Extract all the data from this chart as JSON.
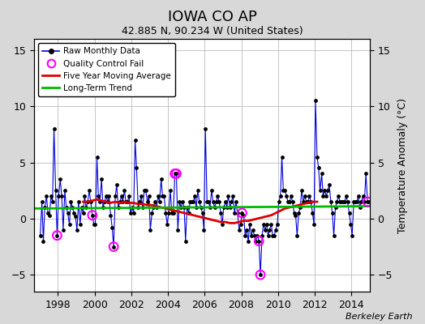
{
  "title": "IOWA CO AP",
  "subtitle": "42.885 N, 90.234 W (United States)",
  "ylabel": "Temperature Anomaly (°C)",
  "xlim": [
    1996.7,
    2015.0
  ],
  "ylim": [
    -6.5,
    16
  ],
  "yticks": [
    -5,
    0,
    5,
    10,
    15
  ],
  "xticks": [
    1998,
    2000,
    2002,
    2004,
    2006,
    2008,
    2010,
    2012,
    2014
  ],
  "bg_color": "#d8d8d8",
  "plot_bg_color": "#ffffff",
  "watermark": "Berkeley Earth",
  "line_color": "#0000dd",
  "ma_color": "#dd0000",
  "trend_color": "#00bb00",
  "qc_color": "#ff00ff",
  "times": [
    1997.04,
    1997.13,
    1997.21,
    1997.29,
    1997.38,
    1997.46,
    1997.54,
    1997.63,
    1997.71,
    1997.79,
    1997.88,
    1997.96,
    1998.04,
    1998.13,
    1998.21,
    1998.29,
    1998.38,
    1998.46,
    1998.54,
    1998.63,
    1998.71,
    1998.79,
    1998.88,
    1998.96,
    1999.04,
    1999.13,
    1999.21,
    1999.29,
    1999.38,
    1999.46,
    1999.54,
    1999.63,
    1999.71,
    1999.79,
    1999.88,
    1999.96,
    2000.04,
    2000.13,
    2000.21,
    2000.29,
    2000.38,
    2000.46,
    2000.54,
    2000.63,
    2000.71,
    2000.79,
    2000.88,
    2000.96,
    2001.04,
    2001.13,
    2001.21,
    2001.29,
    2001.38,
    2001.46,
    2001.54,
    2001.63,
    2001.71,
    2001.79,
    2001.88,
    2001.96,
    2002.04,
    2002.13,
    2002.21,
    2002.29,
    2002.38,
    2002.46,
    2002.54,
    2002.63,
    2002.71,
    2002.79,
    2002.88,
    2002.96,
    2003.04,
    2003.13,
    2003.21,
    2003.29,
    2003.38,
    2003.46,
    2003.54,
    2003.63,
    2003.71,
    2003.79,
    2003.88,
    2003.96,
    2004.04,
    2004.13,
    2004.21,
    2004.29,
    2004.38,
    2004.46,
    2004.54,
    2004.63,
    2004.71,
    2004.79,
    2004.88,
    2004.96,
    2005.04,
    2005.13,
    2005.21,
    2005.29,
    2005.38,
    2005.46,
    2005.54,
    2005.63,
    2005.71,
    2005.79,
    2005.88,
    2005.96,
    2006.04,
    2006.13,
    2006.21,
    2006.29,
    2006.38,
    2006.46,
    2006.54,
    2006.63,
    2006.71,
    2006.79,
    2006.88,
    2006.96,
    2007.04,
    2007.13,
    2007.21,
    2007.29,
    2007.38,
    2007.46,
    2007.54,
    2007.63,
    2007.71,
    2007.79,
    2007.88,
    2007.96,
    2008.04,
    2008.13,
    2008.21,
    2008.29,
    2008.38,
    2008.46,
    2008.54,
    2008.63,
    2008.71,
    2008.79,
    2008.88,
    2008.96,
    2009.04,
    2009.13,
    2009.21,
    2009.29,
    2009.38,
    2009.46,
    2009.54,
    2009.63,
    2009.71,
    2009.79,
    2009.88,
    2009.96,
    2010.04,
    2010.13,
    2010.21,
    2010.29,
    2010.38,
    2010.46,
    2010.54,
    2010.63,
    2010.71,
    2010.79,
    2010.88,
    2010.96,
    2011.04,
    2011.13,
    2011.21,
    2011.29,
    2011.38,
    2011.46,
    2011.54,
    2011.63,
    2011.71,
    2011.79,
    2011.88,
    2011.96,
    2012.04,
    2012.13,
    2012.21,
    2012.29,
    2012.38,
    2012.46,
    2012.54,
    2012.63,
    2012.71,
    2012.79,
    2012.88,
    2012.96,
    2013.04,
    2013.13,
    2013.21,
    2013.29,
    2013.38,
    2013.46,
    2013.54,
    2013.63,
    2013.71,
    2013.79,
    2013.88,
    2013.96,
    2014.04,
    2014.13,
    2014.21,
    2014.29,
    2014.38,
    2014.46,
    2014.54,
    2014.63,
    2014.71,
    2014.79,
    2014.88,
    2014.96
  ],
  "values": [
    -1.5,
    1.5,
    -2.0,
    1.0,
    2.0,
    0.5,
    0.3,
    2.0,
    1.5,
    8.0,
    2.5,
    -1.5,
    2.0,
    3.5,
    2.0,
    -1.0,
    2.5,
    1.0,
    0.5,
    -0.5,
    1.5,
    1.0,
    0.5,
    0.2,
    -1.0,
    1.5,
    -0.5,
    1.0,
    0.5,
    2.0,
    1.0,
    1.5,
    2.5,
    1.5,
    0.3,
    -0.5,
    -0.5,
    5.5,
    2.0,
    1.5,
    3.5,
    1.0,
    1.5,
    2.0,
    1.5,
    2.0,
    0.3,
    -0.8,
    -2.5,
    2.0,
    3.0,
    1.0,
    1.5,
    2.0,
    1.5,
    2.5,
    1.5,
    1.5,
    2.0,
    0.5,
    1.0,
    0.5,
    7.0,
    4.5,
    1.0,
    1.5,
    2.0,
    1.0,
    2.5,
    2.5,
    1.5,
    2.0,
    -1.0,
    0.5,
    1.0,
    1.5,
    1.0,
    2.0,
    1.5,
    3.5,
    2.0,
    2.0,
    0.5,
    -0.5,
    0.5,
    2.5,
    0.5,
    0.5,
    4.0,
    4.0,
    -1.0,
    1.5,
    1.0,
    1.5,
    1.0,
    -2.0,
    1.0,
    0.5,
    1.5,
    1.5,
    1.5,
    2.0,
    1.0,
    2.5,
    1.5,
    1.0,
    0.5,
    -1.0,
    8.0,
    1.5,
    1.5,
    1.0,
    2.5,
    1.5,
    1.0,
    1.5,
    2.0,
    1.5,
    0.5,
    -0.5,
    1.0,
    1.5,
    1.0,
    2.0,
    1.0,
    1.5,
    2.0,
    0.5,
    1.5,
    0.5,
    -1.0,
    -0.5,
    0.5,
    0.3,
    -1.5,
    -1.0,
    -2.0,
    -0.5,
    -1.5,
    -1.0,
    -1.5,
    -2.0,
    -1.5,
    -2.0,
    -5.0,
    -1.5,
    -0.5,
    -1.0,
    -0.5,
    -1.5,
    -1.0,
    -0.5,
    -1.5,
    -1.5,
    -1.0,
    -0.5,
    1.5,
    2.0,
    5.5,
    2.5,
    2.5,
    2.0,
    1.5,
    1.5,
    2.0,
    1.5,
    0.5,
    0.3,
    -1.5,
    0.5,
    1.0,
    2.5,
    1.5,
    2.0,
    1.5,
    1.5,
    2.0,
    1.5,
    0.5,
    -0.5,
    10.5,
    5.5,
    4.5,
    2.5,
    4.0,
    2.0,
    2.5,
    2.0,
    2.5,
    3.0,
    1.5,
    0.5,
    -1.5,
    1.0,
    1.5,
    2.0,
    1.5,
    1.5,
    1.5,
    1.5,
    2.0,
    1.5,
    0.5,
    -0.5,
    -1.5,
    1.5,
    1.5,
    1.5,
    2.0,
    1.0,
    1.5,
    2.0,
    1.5,
    4.0,
    1.5,
    1.5
  ],
  "qc_times": [
    1997.96,
    1999.88,
    2001.04,
    2004.38,
    2004.46,
    2008.04,
    2008.96,
    2009.04,
    2014.88
  ],
  "qc_values": [
    -1.5,
    0.3,
    -2.5,
    4.0,
    4.0,
    0.5,
    -2.0,
    -5.0,
    1.5
  ],
  "ma_times": [
    1999.38,
    1999.63,
    1999.88,
    2000.13,
    2000.38,
    2000.63,
    2000.88,
    2001.13,
    2001.38,
    2001.63,
    2001.88,
    2002.13,
    2002.38,
    2002.63,
    2002.88,
    2003.13,
    2003.38,
    2003.63,
    2003.88,
    2004.13,
    2004.38,
    2004.63,
    2004.88,
    2005.13,
    2005.38,
    2005.63,
    2005.88,
    2006.13,
    2006.38,
    2006.63,
    2006.88,
    2007.13,
    2007.38,
    2007.63,
    2007.88,
    2008.13,
    2008.38,
    2008.63,
    2008.88,
    2009.13,
    2009.38,
    2009.63,
    2009.88,
    2010.13,
    2010.38,
    2010.63,
    2010.88,
    2011.13,
    2011.38,
    2011.63,
    2011.88,
    2012.13
  ],
  "ma_values": [
    1.5,
    1.5,
    1.6,
    1.7,
    1.6,
    1.5,
    1.4,
    1.5,
    1.4,
    1.5,
    1.4,
    1.4,
    1.3,
    1.3,
    1.2,
    1.2,
    1.1,
    1.0,
    0.9,
    0.8,
    0.7,
    0.6,
    0.5,
    0.4,
    0.3,
    0.2,
    0.1,
    0.0,
    -0.1,
    -0.2,
    -0.3,
    -0.3,
    -0.4,
    -0.4,
    -0.3,
    -0.2,
    -0.2,
    -0.1,
    0.0,
    0.1,
    0.2,
    0.3,
    0.5,
    0.7,
    0.9,
    1.0,
    1.1,
    1.2,
    1.3,
    1.4,
    1.5,
    1.5
  ],
  "trend_times": [
    1996.7,
    2015.0
  ],
  "trend_values": [
    0.9,
    1.1
  ]
}
